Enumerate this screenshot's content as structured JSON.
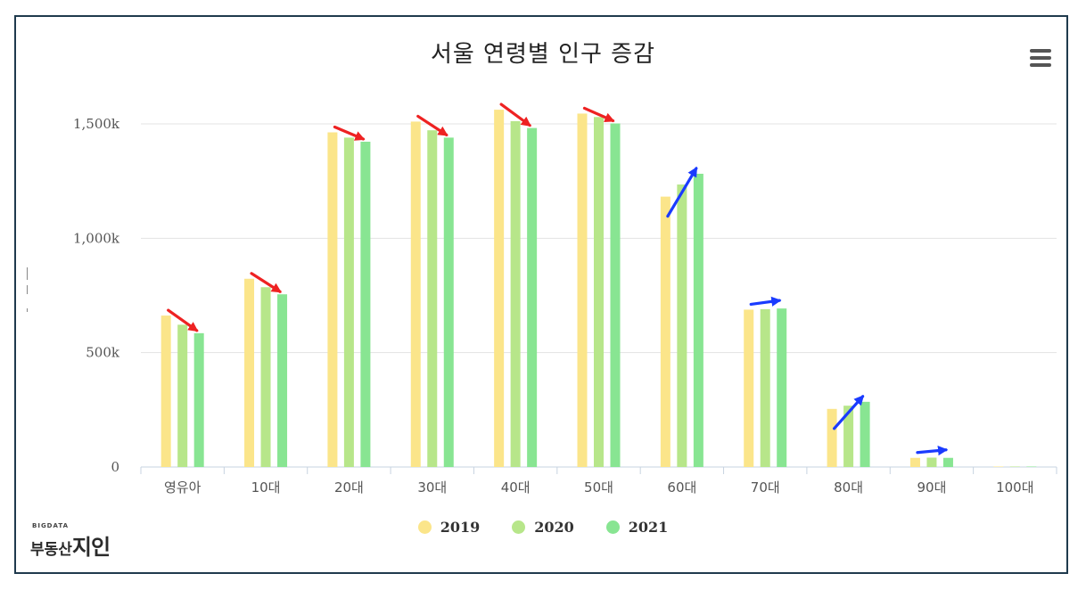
{
  "chart_data": {
    "type": "bar",
    "title": "서울 연령별 인구 증감",
    "categories": [
      "영유아",
      "10대",
      "20대",
      "30대",
      "40대",
      "50대",
      "60대",
      "70대",
      "80대",
      "90대",
      "100대"
    ],
    "series": [
      {
        "name": "2019",
        "values": [
          662000,
          823000,
          1463000,
          1510000,
          1562000,
          1545000,
          1182000,
          688000,
          254000,
          40000,
          2000
        ]
      },
      {
        "name": "2020",
        "values": [
          622000,
          786000,
          1440000,
          1472000,
          1512000,
          1530000,
          1235000,
          690000,
          268000,
          41000,
          2000
        ]
      },
      {
        "name": "2021",
        "values": [
          585000,
          755000,
          1422000,
          1440000,
          1482000,
          1502000,
          1282000,
          693000,
          285000,
          40000,
          2000
        ]
      }
    ],
    "colors": [
      "#fbe58a",
      "#b7e68a",
      "#88e592"
    ],
    "ylim": [
      0,
      1500000
    ],
    "yticks": [
      0,
      500000,
      1000000,
      1500000
    ],
    "ytick_labels": [
      "0",
      "500k",
      "1,000k",
      "1,500k"
    ],
    "grid": true,
    "legend_position": "bottom-center",
    "annotations": [
      {
        "type": "arrow",
        "category": "영유아",
        "direction": "decrease",
        "color": "#ee2222"
      },
      {
        "type": "arrow",
        "category": "10대",
        "direction": "decrease",
        "color": "#ee2222"
      },
      {
        "type": "arrow",
        "category": "20대",
        "direction": "decrease",
        "color": "#ee2222"
      },
      {
        "type": "arrow",
        "category": "30대",
        "direction": "decrease",
        "color": "#ee2222"
      },
      {
        "type": "arrow",
        "category": "40대",
        "direction": "decrease",
        "color": "#ee2222"
      },
      {
        "type": "arrow",
        "category": "50대",
        "direction": "decrease",
        "color": "#ee2222"
      },
      {
        "type": "arrow",
        "category": "60대",
        "direction": "increase",
        "color": "#1a3bff"
      },
      {
        "type": "arrow",
        "category": "70대",
        "direction": "increase",
        "color": "#1a3bff"
      },
      {
        "type": "arrow",
        "category": "80대",
        "direction": "increase",
        "color": "#1a3bff"
      },
      {
        "type": "arrow",
        "category": "90대",
        "direction": "increase",
        "color": "#1a3bff"
      }
    ]
  },
  "menu": {
    "icon": "hamburger-menu-icon"
  },
  "logo": {
    "small_text": "BIGDATA",
    "text_a": "부동산",
    "text_b": "지인"
  }
}
